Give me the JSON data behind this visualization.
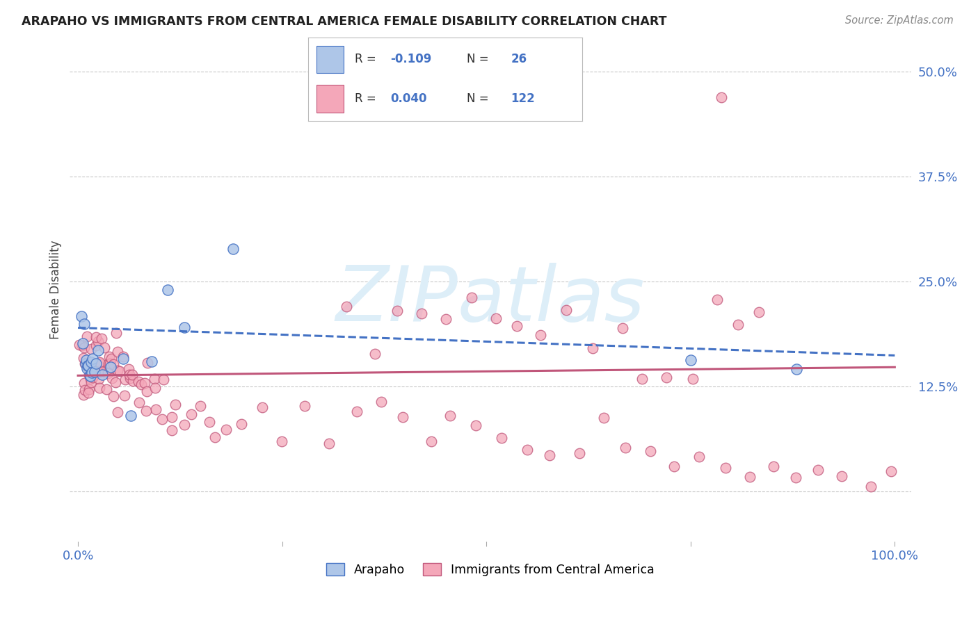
{
  "title": "ARAPAHO VS IMMIGRANTS FROM CENTRAL AMERICA FEMALE DISABILITY CORRELATION CHART",
  "source": "Source: ZipAtlas.com",
  "ylabel": "Female Disability",
  "xlim": [
    -0.01,
    1.02
  ],
  "ylim": [
    -0.06,
    0.54
  ],
  "yticks": [
    0.0,
    0.125,
    0.25,
    0.375,
    0.5
  ],
  "ytick_labels": [
    "",
    "12.5%",
    "25.0%",
    "37.5%",
    "50.0%"
  ],
  "xticks": [
    0.0,
    0.25,
    0.5,
    0.75,
    1.0
  ],
  "xtick_labels": [
    "0.0%",
    "",
    "",
    "",
    "100.0%"
  ],
  "arapaho_R": -0.109,
  "arapaho_N": 26,
  "immigrants_R": 0.04,
  "immigrants_N": 122,
  "background_color": "#ffffff",
  "grid_color": "#c8c8c8",
  "arapaho_color": "#aec6e8",
  "arapaho_line_color": "#4472c4",
  "immigrants_color": "#f4a7b9",
  "immigrants_line_color": "#c0567a",
  "watermark_color": "#ddeef8",
  "arapaho_x": [
    0.004,
    0.006,
    0.008,
    0.009,
    0.01,
    0.011,
    0.012,
    0.013,
    0.014,
    0.015,
    0.016,
    0.017,
    0.018,
    0.02,
    0.022,
    0.025,
    0.03,
    0.04,
    0.055,
    0.065,
    0.09,
    0.11,
    0.13,
    0.19,
    0.75,
    0.88
  ],
  "arapaho_y": [
    0.21,
    0.175,
    0.2,
    0.155,
    0.155,
    0.155,
    0.155,
    0.155,
    0.14,
    0.14,
    0.155,
    0.14,
    0.155,
    0.14,
    0.155,
    0.165,
    0.14,
    0.14,
    0.155,
    0.09,
    0.155,
    0.245,
    0.195,
    0.295,
    0.155,
    0.155
  ],
  "immigrants_x": [
    0.003,
    0.004,
    0.005,
    0.006,
    0.007,
    0.008,
    0.009,
    0.01,
    0.011,
    0.012,
    0.013,
    0.014,
    0.015,
    0.016,
    0.017,
    0.018,
    0.019,
    0.02,
    0.021,
    0.022,
    0.023,
    0.024,
    0.025,
    0.026,
    0.027,
    0.028,
    0.029,
    0.03,
    0.031,
    0.032,
    0.033,
    0.034,
    0.035,
    0.036,
    0.037,
    0.038,
    0.039,
    0.04,
    0.042,
    0.043,
    0.044,
    0.045,
    0.046,
    0.047,
    0.048,
    0.05,
    0.052,
    0.054,
    0.056,
    0.058,
    0.06,
    0.062,
    0.065,
    0.068,
    0.07,
    0.072,
    0.075,
    0.078,
    0.08,
    0.083,
    0.085,
    0.087,
    0.09,
    0.093,
    0.095,
    0.1,
    0.105,
    0.11,
    0.115,
    0.12,
    0.13,
    0.14,
    0.15,
    0.16,
    0.17,
    0.18,
    0.2,
    0.22,
    0.25,
    0.28,
    0.31,
    0.34,
    0.37,
    0.4,
    0.43,
    0.46,
    0.49,
    0.52,
    0.55,
    0.58,
    0.61,
    0.64,
    0.67,
    0.7,
    0.73,
    0.76,
    0.79,
    0.82,
    0.85,
    0.88,
    0.91,
    0.94,
    0.97,
    1.0,
    0.33,
    0.36,
    0.39,
    0.42,
    0.45,
    0.48,
    0.51,
    0.54,
    0.57,
    0.6,
    0.63,
    0.66,
    0.69,
    0.72,
    0.75,
    0.78,
    0.81,
    0.84,
    0.78
  ],
  "immigrants_y": [
    0.15,
    0.148,
    0.148,
    0.148,
    0.148,
    0.148,
    0.148,
    0.148,
    0.148,
    0.148,
    0.148,
    0.148,
    0.148,
    0.148,
    0.148,
    0.148,
    0.148,
    0.148,
    0.148,
    0.148,
    0.148,
    0.148,
    0.148,
    0.148,
    0.148,
    0.148,
    0.148,
    0.148,
    0.148,
    0.148,
    0.148,
    0.148,
    0.148,
    0.148,
    0.148,
    0.148,
    0.148,
    0.148,
    0.148,
    0.145,
    0.145,
    0.145,
    0.145,
    0.145,
    0.145,
    0.143,
    0.143,
    0.14,
    0.14,
    0.138,
    0.138,
    0.135,
    0.133,
    0.13,
    0.128,
    0.128,
    0.125,
    0.122,
    0.12,
    0.118,
    0.118,
    0.115,
    0.113,
    0.11,
    0.108,
    0.108,
    0.105,
    0.103,
    0.1,
    0.098,
    0.098,
    0.095,
    0.093,
    0.09,
    0.088,
    0.085,
    0.082,
    0.08,
    0.078,
    0.075,
    0.073,
    0.07,
    0.068,
    0.065,
    0.063,
    0.06,
    0.058,
    0.055,
    0.053,
    0.05,
    0.048,
    0.045,
    0.043,
    0.04,
    0.038,
    0.035,
    0.033,
    0.03,
    0.028,
    0.025,
    0.023,
    0.02,
    0.018,
    0.015,
    0.21,
    0.215,
    0.22,
    0.215,
    0.21,
    0.208,
    0.205,
    0.205,
    0.2,
    0.205,
    0.2,
    0.2,
    0.145,
    0.143,
    0.14,
    0.25,
    0.22,
    0.215,
    0.47
  ]
}
